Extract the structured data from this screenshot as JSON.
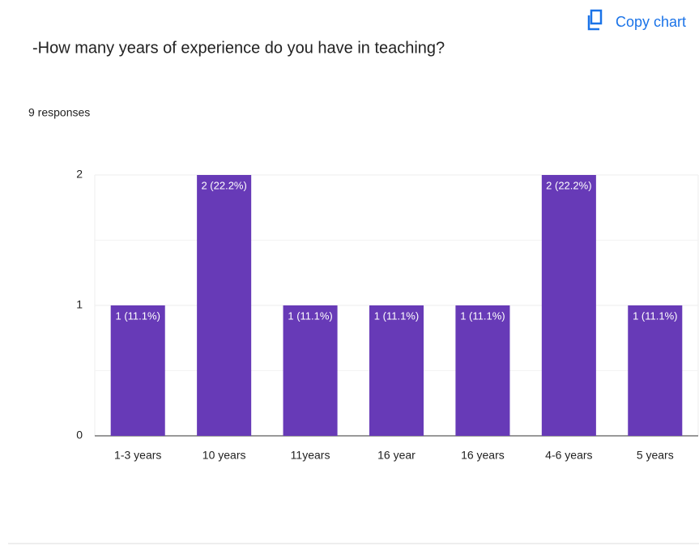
{
  "copy_chart": "Copy chart",
  "chart_data": {
    "type": "bar",
    "title": "-How many years of experience do you have in teaching?",
    "subtitle": "9 responses",
    "categories": [
      "1-3 years",
      "10 years",
      "11years",
      "16 year",
      "16 years",
      "4-6 years",
      "5 years"
    ],
    "values": [
      1,
      2,
      1,
      1,
      1,
      2,
      1
    ],
    "value_labels": [
      "1 (11.1%)",
      "2 (22.2%)",
      "1 (11.1%)",
      "1 (11.1%)",
      "1 (11.1%)",
      "2 (22.2%)",
      "1 (11.1%)"
    ],
    "color": "#673ab7",
    "ylim": [
      0,
      2
    ],
    "yticks": [
      0,
      1,
      2
    ],
    "minor_yticks": [
      0.5,
      1.5
    ],
    "grid": true
  }
}
